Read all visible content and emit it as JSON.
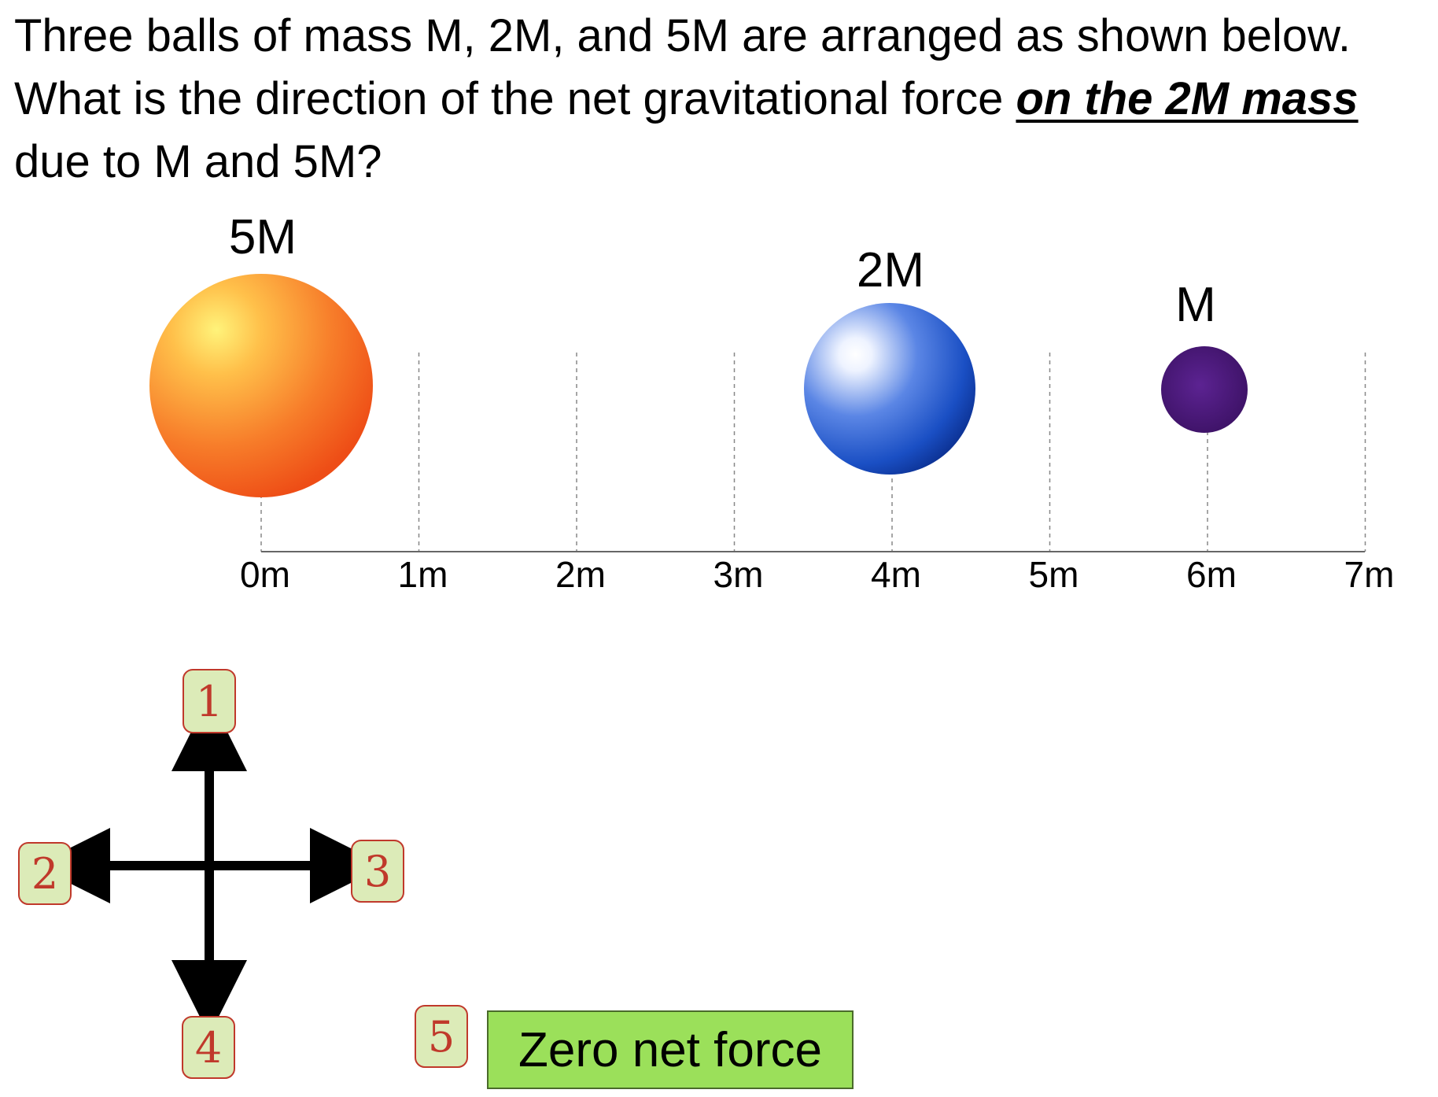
{
  "question": {
    "text_before": "Three balls of mass M, 2M, and 5M are arranged as shown below.  What is the direction of the net gravitational force ",
    "emphasis": "on the 2M mass",
    "text_after": " due to M and 5M?"
  },
  "balls": [
    {
      "label": "5M",
      "position_m": 0
    },
    {
      "label": "2M",
      "position_m": 4
    },
    {
      "label": "M",
      "position_m": 6
    }
  ],
  "axis": {
    "ticks": [
      "0m",
      "1m",
      "2m",
      "3m",
      "4m",
      "5m",
      "6m",
      "7m"
    ]
  },
  "choices": {
    "up": "1",
    "left": "2",
    "right": "3",
    "down": "4",
    "zero": "5",
    "zero_label": "Zero net force"
  },
  "colors": {
    "ball_5M": "#f4661e",
    "ball_2M": "#1a4fc4",
    "ball_M": "#4b1a7d",
    "choice_badge": "#dcebb8",
    "zero_box": "#9be05a"
  }
}
